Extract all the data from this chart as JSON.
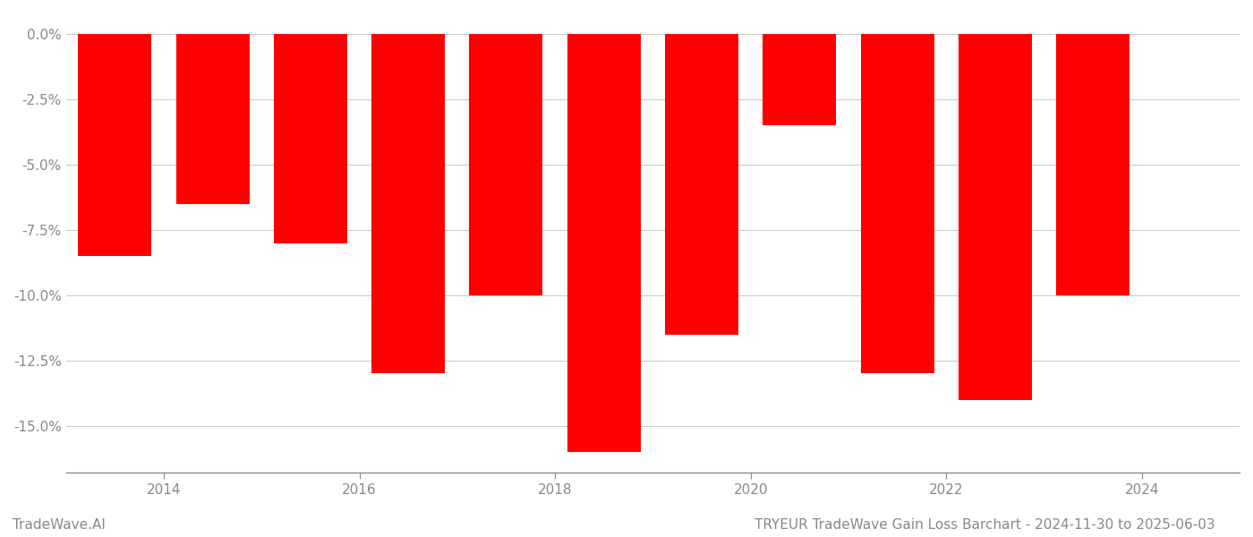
{
  "years": [
    2013.5,
    2014.5,
    2015.5,
    2016.5,
    2017.5,
    2018.5,
    2019.5,
    2020.5,
    2021.5,
    2022.5,
    2023.5
  ],
  "values": [
    -0.085,
    -0.065,
    -0.08,
    -0.13,
    -0.1,
    -0.16,
    -0.115,
    -0.035,
    -0.13,
    -0.14,
    -0.1
  ],
  "bar_color": "#ff0000",
  "background_color": "#ffffff",
  "title": "TRYEUR TradeWave Gain Loss Barchart - 2024-11-30 to 2025-06-03",
  "watermark": "TradeWave.AI",
  "ylim": [
    -0.168,
    0.008
  ],
  "yticks": [
    0.0,
    -0.025,
    -0.05,
    -0.075,
    -0.1,
    -0.125,
    -0.15
  ],
  "xticks": [
    2014,
    2016,
    2018,
    2020,
    2022,
    2024
  ],
  "xlim": [
    2013.0,
    2025.0
  ],
  "bar_width": 0.75,
  "grid_color": "#cccccc",
  "axis_color": "#888888",
  "title_fontsize": 11,
  "tick_fontsize": 11,
  "watermark_fontsize": 11
}
